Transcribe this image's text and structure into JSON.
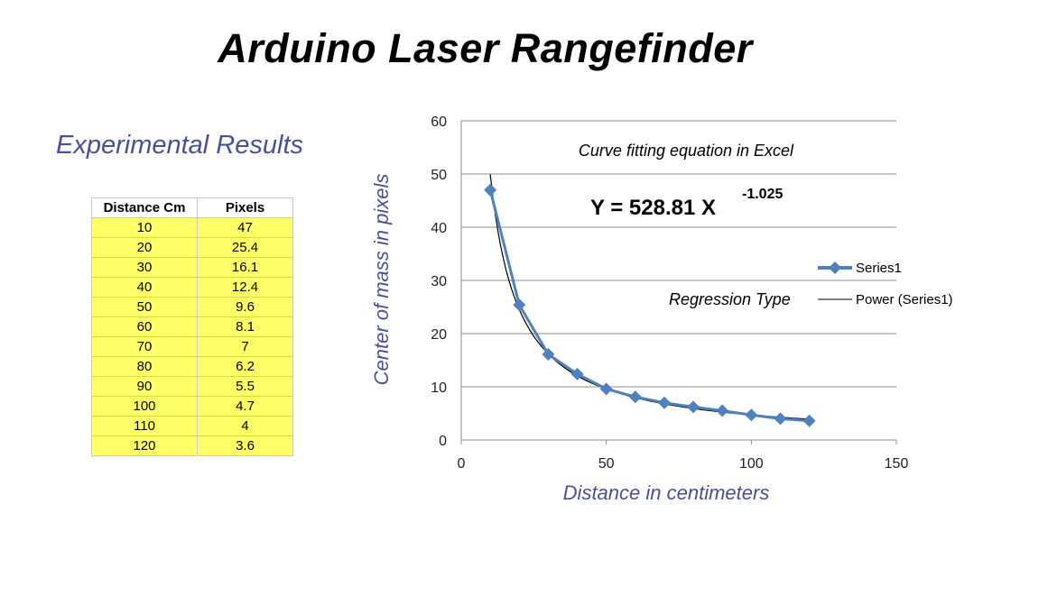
{
  "slide": {
    "title": "Arduino Laser Rangefinder",
    "subtitle": "Experimental Results"
  },
  "table": {
    "headers": [
      "Distance Cm",
      "Pixels"
    ],
    "rows": [
      [
        "10",
        "47"
      ],
      [
        "20",
        "25.4"
      ],
      [
        "30",
        "16.1"
      ],
      [
        "40",
        "12.4"
      ],
      [
        "50",
        "9.6"
      ],
      [
        "60",
        "8.1"
      ],
      [
        "70",
        "7"
      ],
      [
        "80",
        "6.2"
      ],
      [
        "90",
        "5.5"
      ],
      [
        "100",
        "4.7"
      ],
      [
        "110",
        "4"
      ],
      [
        "120",
        "3.6"
      ]
    ]
  },
  "chart_data": {
    "type": "scatter",
    "xlabel": "Distance in centimeters",
    "ylabel": "Center of mass in pixels",
    "xlim": [
      0,
      150
    ],
    "ylim": [
      0,
      60
    ],
    "x_ticks": [
      0,
      50,
      100,
      150
    ],
    "y_ticks": [
      0,
      10,
      20,
      30,
      40,
      50,
      60
    ],
    "grid": "horizontal",
    "legend_position": "right",
    "series": [
      {
        "name": "Series1",
        "color": "#4f81bd",
        "x": [
          10,
          20,
          30,
          40,
          50,
          60,
          70,
          80,
          90,
          100,
          110,
          120
        ],
        "y": [
          47,
          25.4,
          16.1,
          12.4,
          9.6,
          8.1,
          7,
          6.2,
          5.5,
          4.7,
          4,
          3.6
        ]
      }
    ],
    "trendline": {
      "name": "Power (Series1)",
      "type": "power",
      "coefficient": 528.81,
      "exponent": -1.025,
      "color": "#000000"
    },
    "annotations": {
      "fit_note": "Curve fitting equation in Excel",
      "equation": "Y = 528.81 X",
      "equation_exponent": "-1.025",
      "regression_label": "Regression Type"
    }
  }
}
